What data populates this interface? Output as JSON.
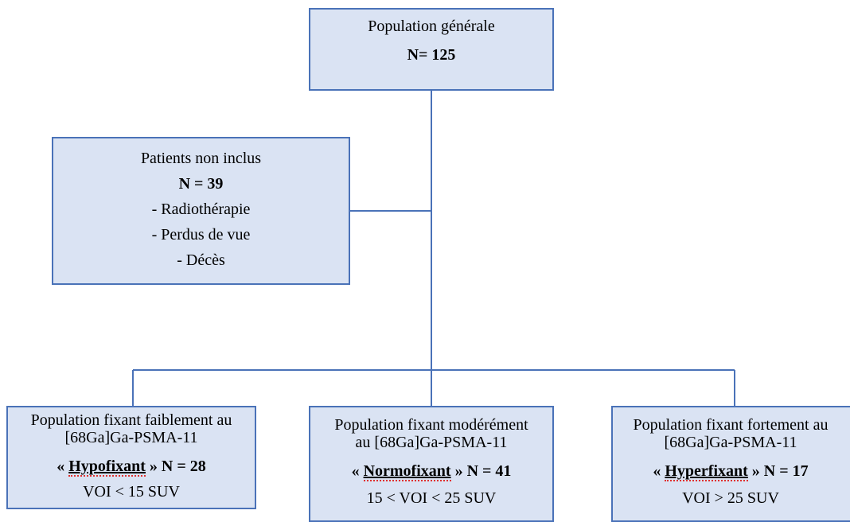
{
  "nodes": [
    {
      "title": "Population générale",
      "count": "N= 125"
    },
    {
      "title": "Patients non inclus",
      "count": "N = 39",
      "items": [
        "- Radiothérapie",
        "- Perdus de vue",
        "- Décès"
      ]
    },
    {
      "title": "Population fixant faiblement au",
      "tracer": "[68Ga]Ga-PSMA-11",
      "open": "«",
      "tag": "Hypofixant",
      "close": "»",
      "count": "N = 28",
      "criterion": "VOI < 15 SUV"
    },
    {
      "title": "Population fixant modérément",
      "tracer": "au [68Ga]Ga-PSMA-11",
      "open": "«",
      "tag": "Normofixant",
      "close": "»",
      "count": "N = 41",
      "criterion": "15 < VOI < 25 SUV"
    },
    {
      "title": "Population fixant fortement au",
      "tracer": "[68Ga]Ga-PSMA-11",
      "open": "«",
      "tag": "Hyperfixant",
      "close": "»",
      "count": "N = 17",
      "criterion": "VOI > 25 SUV"
    }
  ]
}
